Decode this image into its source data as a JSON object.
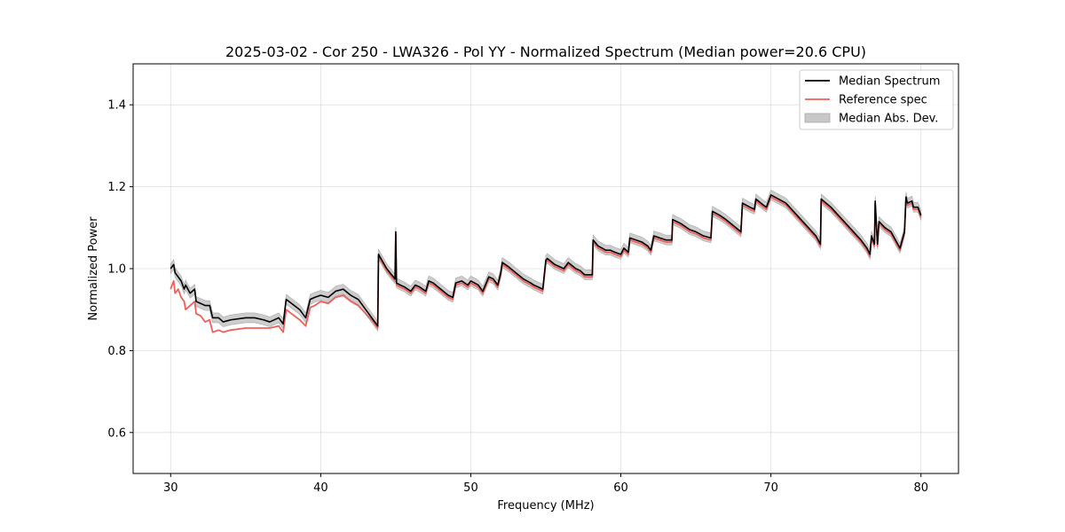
{
  "chart_data": {
    "type": "line",
    "title": "2025-03-02 - Cor 250 - LWA326 - Pol YY - Normalized Spectrum (Median power=20.6 CPU)",
    "xlabel": "Frequency (MHz)",
    "ylabel": "Normalized Power",
    "xlim": [
      27.5,
      82.5
    ],
    "ylim": [
      0.5,
      1.5
    ],
    "xticks": [
      30,
      40,
      50,
      60,
      70,
      80
    ],
    "yticks": [
      0.6,
      0.8,
      1.0,
      1.2,
      1.4
    ],
    "xtick_labels": [
      "30",
      "40",
      "50",
      "60",
      "70",
      "80"
    ],
    "ytick_labels": [
      "0.6",
      "0.8",
      "1.0",
      "1.2",
      "1.4"
    ],
    "grid": true,
    "legend_position": "top-right",
    "colors": {
      "median": "#000000",
      "reference": "#f0605a",
      "mad": "#c8c8c8"
    },
    "series": [
      {
        "name": "Median Spectrum",
        "x": [
          30.0,
          30.2,
          30.3,
          30.5,
          30.7,
          30.9,
          31.0,
          31.3,
          31.6,
          31.7,
          32.0,
          32.3,
          32.6,
          32.8,
          33.2,
          33.5,
          34.0,
          35.0,
          35.6,
          36.2,
          36.6,
          37.2,
          37.5,
          37.7,
          38.6,
          39.0,
          39.3,
          39.6,
          40.0,
          40.5,
          41.0,
          41.5,
          42.0,
          42.5,
          43.0,
          43.5,
          43.8,
          43.85,
          44.4,
          44.95,
          45.0,
          45.05,
          45.3,
          45.6,
          46.0,
          46.3,
          46.6,
          47.0,
          47.2,
          47.5,
          48.0,
          48.5,
          48.8,
          49.0,
          49.4,
          49.8,
          50.0,
          50.5,
          50.8,
          51.2,
          51.5,
          51.8,
          52.0,
          52.1,
          52.5,
          53.0,
          53.5,
          54.0,
          54.2,
          54.5,
          54.8,
          55.0,
          55.1,
          55.6,
          56.2,
          56.5,
          57.0,
          57.3,
          57.6,
          58.1,
          58.15,
          58.5,
          59.0,
          59.3,
          59.6,
          60.0,
          60.2,
          60.5,
          60.6,
          61.0,
          61.4,
          61.8,
          62.0,
          62.2,
          62.6,
          63.0,
          63.4,
          63.45,
          64.0,
          64.6,
          65.0,
          65.5,
          66.0,
          66.1,
          66.6,
          67.0,
          67.5,
          68.0,
          68.1,
          68.6,
          68.9,
          69.0,
          69.5,
          69.7,
          70.0,
          70.5,
          71.0,
          71.5,
          72.0,
          72.5,
          73.0,
          73.3,
          73.35,
          74.0,
          74.5,
          75.0,
          75.5,
          76.0,
          76.4,
          76.6,
          76.7,
          76.9,
          76.95,
          77.1,
          77.2,
          77.6,
          78.0,
          78.3,
          78.6,
          78.9,
          79.0,
          79.1,
          79.4,
          79.5,
          79.8,
          80.0
        ],
        "y": [
          1.0,
          1.01,
          0.99,
          0.98,
          0.97,
          0.95,
          0.96,
          0.94,
          0.95,
          0.92,
          0.915,
          0.91,
          0.91,
          0.88,
          0.88,
          0.87,
          0.875,
          0.88,
          0.88,
          0.875,
          0.87,
          0.88,
          0.865,
          0.925,
          0.9,
          0.88,
          0.925,
          0.93,
          0.935,
          0.93,
          0.945,
          0.95,
          0.935,
          0.925,
          0.9,
          0.875,
          0.86,
          1.035,
          1.0,
          0.975,
          1.09,
          0.965,
          0.96,
          0.955,
          0.945,
          0.96,
          0.955,
          0.945,
          0.97,
          0.965,
          0.95,
          0.935,
          0.93,
          0.965,
          0.97,
          0.96,
          0.97,
          0.96,
          0.945,
          0.98,
          0.975,
          0.96,
          0.99,
          1.015,
          1.005,
          0.99,
          0.975,
          0.965,
          0.96,
          0.955,
          0.95,
          1.02,
          1.025,
          1.01,
          1.0,
          1.015,
          1.0,
          0.995,
          0.985,
          0.985,
          1.07,
          1.055,
          1.045,
          1.045,
          1.04,
          1.035,
          1.05,
          1.04,
          1.075,
          1.07,
          1.065,
          1.055,
          1.045,
          1.08,
          1.075,
          1.07,
          1.07,
          1.12,
          1.11,
          1.095,
          1.09,
          1.08,
          1.075,
          1.14,
          1.13,
          1.12,
          1.105,
          1.09,
          1.16,
          1.15,
          1.145,
          1.17,
          1.155,
          1.15,
          1.18,
          1.17,
          1.16,
          1.14,
          1.12,
          1.1,
          1.08,
          1.06,
          1.17,
          1.15,
          1.13,
          1.11,
          1.09,
          1.07,
          1.05,
          1.035,
          1.08,
          1.06,
          1.165,
          1.06,
          1.115,
          1.1,
          1.09,
          1.07,
          1.05,
          1.09,
          1.175,
          1.16,
          1.165,
          1.15,
          1.15,
          1.13
        ]
      },
      {
        "name": "Reference spec",
        "x": [
          30.0,
          30.2,
          30.3,
          30.5,
          30.7,
          30.9,
          31.0,
          31.3,
          31.6,
          31.7,
          32.0,
          32.3,
          32.6,
          32.8,
          33.2,
          33.5,
          34.0,
          35.0,
          35.6,
          36.2,
          36.6,
          37.2,
          37.5,
          37.7,
          38.6,
          39.0,
          39.3,
          39.6,
          40.0,
          40.5,
          41.0,
          41.5,
          42.0,
          42.5,
          43.0,
          43.5,
          43.8,
          43.85,
          44.4,
          44.95,
          45.0,
          45.05,
          45.3,
          45.6,
          46.0,
          46.3,
          46.6,
          47.0,
          47.2,
          47.5,
          48.0,
          48.5,
          48.8,
          49.0,
          49.4,
          49.8,
          50.0,
          50.5,
          50.8,
          51.2,
          51.5,
          51.8,
          52.0,
          52.1,
          52.5,
          53.0,
          53.5,
          54.0,
          54.2,
          54.5,
          54.8,
          55.0,
          55.1,
          55.6,
          56.2,
          56.5,
          57.0,
          57.3,
          57.6,
          58.1,
          58.15,
          58.5,
          59.0,
          59.3,
          59.6,
          60.0,
          60.2,
          60.5,
          60.6,
          61.0,
          61.4,
          61.8,
          62.0,
          62.2,
          62.6,
          63.0,
          63.4,
          63.45,
          64.0,
          64.6,
          65.0,
          65.5,
          66.0,
          66.1,
          66.6,
          67.0,
          67.5,
          68.0,
          68.1,
          68.6,
          68.9,
          69.0,
          69.5,
          69.7,
          70.0,
          70.5,
          71.0,
          71.5,
          72.0,
          72.5,
          73.0,
          73.3,
          73.35,
          74.0,
          74.5,
          75.0,
          75.5,
          76.0,
          76.4,
          76.6,
          76.7,
          76.9,
          76.95,
          77.1,
          77.2,
          77.6,
          78.0,
          78.3,
          78.6,
          78.9,
          79.0,
          79.1,
          79.4,
          79.5,
          79.8,
          80.0
        ],
        "y": [
          0.95,
          0.97,
          0.94,
          0.95,
          0.93,
          0.92,
          0.9,
          0.91,
          0.92,
          0.89,
          0.885,
          0.87,
          0.875,
          0.845,
          0.85,
          0.845,
          0.85,
          0.855,
          0.855,
          0.855,
          0.855,
          0.86,
          0.845,
          0.9,
          0.875,
          0.86,
          0.905,
          0.91,
          0.92,
          0.915,
          0.93,
          0.935,
          0.92,
          0.91,
          0.89,
          0.87,
          0.855,
          1.03,
          0.995,
          0.97,
          1.085,
          0.96,
          0.955,
          0.95,
          0.94,
          0.955,
          0.95,
          0.94,
          0.965,
          0.96,
          0.945,
          0.93,
          0.925,
          0.96,
          0.965,
          0.955,
          0.965,
          0.955,
          0.94,
          0.975,
          0.97,
          0.955,
          0.985,
          1.01,
          1.0,
          0.985,
          0.97,
          0.96,
          0.955,
          0.95,
          0.945,
          1.015,
          1.02,
          1.005,
          0.995,
          1.01,
          0.995,
          0.99,
          0.98,
          0.98,
          1.065,
          1.05,
          1.04,
          1.04,
          1.035,
          1.03,
          1.045,
          1.035,
          1.07,
          1.065,
          1.06,
          1.05,
          1.04,
          1.075,
          1.07,
          1.065,
          1.065,
          1.115,
          1.105,
          1.09,
          1.085,
          1.075,
          1.07,
          1.135,
          1.125,
          1.115,
          1.1,
          1.085,
          1.155,
          1.145,
          1.14,
          1.165,
          1.15,
          1.145,
          1.175,
          1.165,
          1.155,
          1.135,
          1.115,
          1.095,
          1.075,
          1.055,
          1.165,
          1.145,
          1.125,
          1.105,
          1.085,
          1.065,
          1.045,
          1.03,
          1.075,
          1.055,
          1.16,
          1.055,
          1.11,
          1.095,
          1.085,
          1.065,
          1.045,
          1.085,
          1.17,
          1.155,
          1.16,
          1.145,
          1.145,
          1.125
        ]
      }
    ],
    "band": {
      "name": "Median Abs. Dev.",
      "halfwidth": 0.012
    },
    "legend": [
      {
        "label": "Median Spectrum",
        "kind": "line",
        "color": "#000000"
      },
      {
        "label": "Reference spec",
        "kind": "line",
        "color": "#f0605a"
      },
      {
        "label": "Median Abs. Dev.",
        "kind": "patch",
        "color": "#c8c8c8"
      }
    ]
  }
}
